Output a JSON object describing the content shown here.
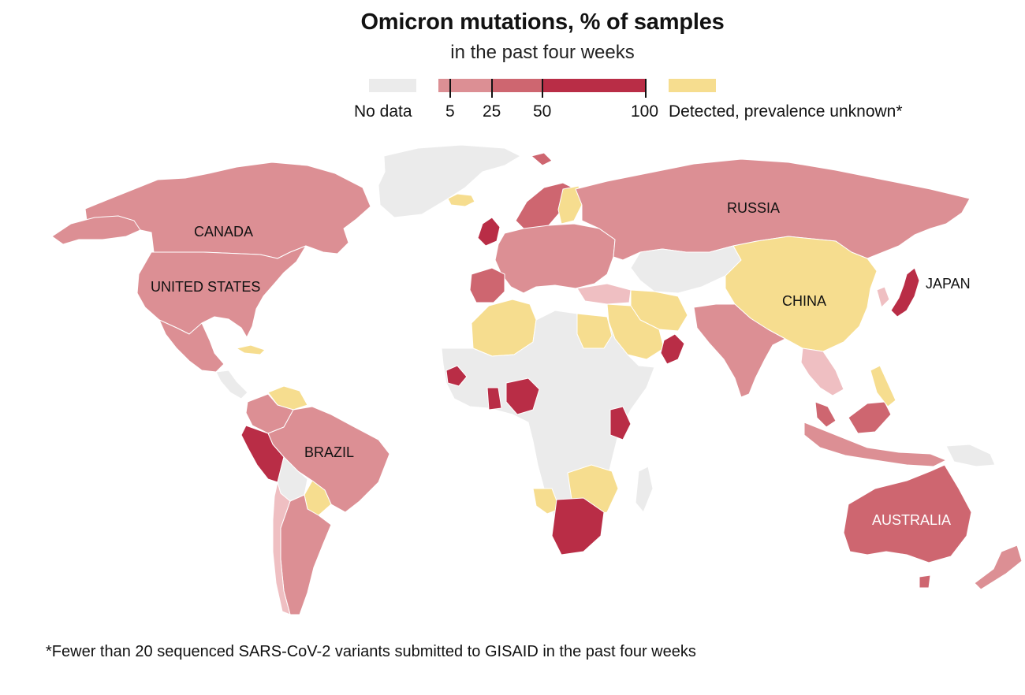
{
  "title": "Omicron mutations, % of samples",
  "subtitle": "in the past four weeks",
  "legend": {
    "no_data_label": "No data",
    "ticks": [
      "5",
      "25",
      "50",
      "100"
    ],
    "detected_label": "Detected, prevalence unknown*",
    "colors": {
      "no_data": "#ebebeb",
      "bin_5_25": "#dc8f94",
      "bin_25_50": "#ce6670",
      "bin_50_100": "#b92d46",
      "bin_0_5": "#efbfc2",
      "detected": "#f6dd8f"
    }
  },
  "map": {
    "labels": {
      "canada": "CANADA",
      "united_states": "UNITED STATES",
      "brazil": "BRAZIL",
      "russia": "RUSSIA",
      "china": "CHINA",
      "japan": "JAPAN",
      "australia": "AUSTRALIA"
    },
    "regions": [
      {
        "name": "Canada",
        "category": "5–25"
      },
      {
        "name": "United States",
        "category": "5–25"
      },
      {
        "name": "Brazil",
        "category": "5–25"
      },
      {
        "name": "Russia",
        "category": "5–25"
      },
      {
        "name": "China",
        "category": "Detected, prevalence unknown"
      },
      {
        "name": "Japan",
        "category": "50–100"
      },
      {
        "name": "Australia",
        "category": "25–50"
      },
      {
        "name": "South Africa",
        "category": "50–100"
      },
      {
        "name": "Nigeria",
        "category": "50–100"
      },
      {
        "name": "Ghana",
        "category": "50–100"
      },
      {
        "name": "Kenya",
        "category": "50–100"
      },
      {
        "name": "Peru",
        "category": "25–50"
      },
      {
        "name": "India",
        "category": "5–25"
      },
      {
        "name": "Greenland",
        "category": "No data"
      }
    ]
  },
  "footnote": "*Fewer than 20 sequenced SARS-CoV-2 variants submitted to GISAID in the past four weeks"
}
